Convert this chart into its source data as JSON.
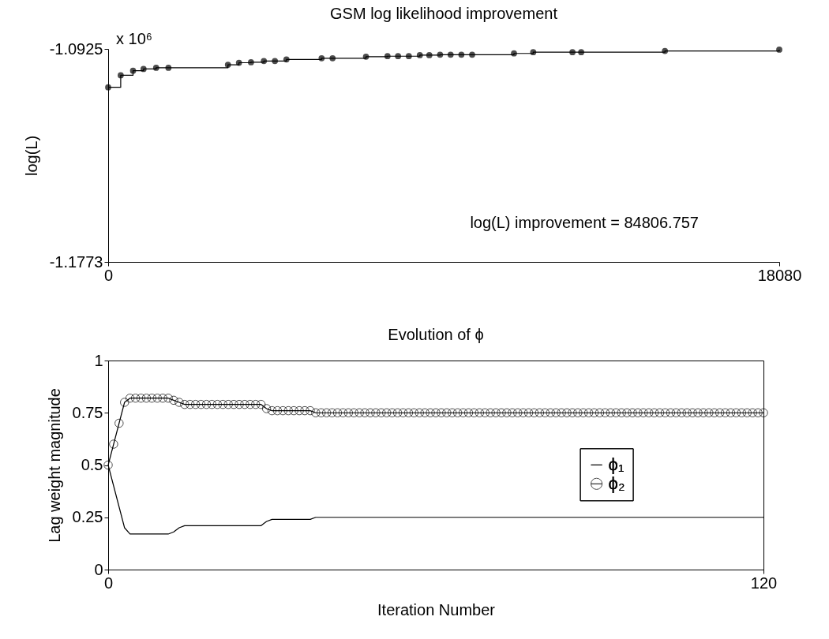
{
  "chart_data": [
    {
      "type": "step",
      "title": "GSM log likelihood improvement",
      "ylabel": "log(L)",
      "xlim": [
        0,
        18080
      ],
      "xticks": [
        0,
        18080
      ],
      "ylim": [
        -1.1773,
        -1.0925
      ],
      "yticks": [
        -1.1773,
        -1.0925
      ],
      "marker": "circle",
      "legend": false,
      "annotations": [
        "x 10⁶",
        "log(L) improvement = 84806.757"
      ],
      "series": [
        {
          "color": "#000000",
          "x": [
            0,
            338,
            670,
            953,
            1292,
            1624,
            3227,
            3524,
            3848,
            4195,
            4492,
            4803,
            5750,
            6046,
            6946,
            7526,
            7810,
            8100,
            8397,
            8652,
            8942,
            9226,
            9516,
            9806,
            10933,
            11451,
            12509,
            12744,
            15000,
            18080
          ],
          "values": [
            -1.1078,
            -1.103,
            -1.1012,
            -1.1005,
            -1.1,
            -1.1,
            -1.0988,
            -1.098,
            -1.0978,
            -1.0973,
            -1.0973,
            -1.0967,
            -1.0962,
            -1.0962,
            -1.0956,
            -1.0954,
            -1.0954,
            -1.0954,
            -1.095,
            -1.095,
            -1.0948,
            -1.0948,
            -1.0948,
            -1.0948,
            -1.0943,
            -1.0938,
            -1.0938,
            -1.0938,
            -1.0933,
            -1.0928
          ]
        }
      ]
    },
    {
      "type": "line",
      "title": "Evolution of ϕ",
      "xlabel": "Iteration Number",
      "ylabel": "Lag weight magnitude",
      "xlim": [
        0,
        120
      ],
      "xticks": [
        0,
        120
      ],
      "ylim": [
        0,
        1
      ],
      "yticks": [
        0,
        0.25,
        0.5,
        0.75,
        1
      ],
      "legend": "right",
      "x": [
        0,
        1,
        2,
        3,
        4,
        5,
        6,
        7,
        8,
        9,
        10,
        11,
        12,
        13,
        14,
        15,
        16,
        17,
        18,
        19,
        20,
        21,
        22,
        23,
        24,
        25,
        26,
        27,
        28,
        29,
        30,
        31,
        32,
        33,
        34,
        35,
        36,
        37,
        38,
        39,
        40,
        41,
        42,
        43,
        44,
        45,
        46,
        47,
        48,
        49,
        50,
        51,
        52,
        53,
        54,
        55,
        56,
        57,
        58,
        59,
        60,
        61,
        62,
        63,
        64,
        65,
        66,
        67,
        68,
        69,
        70,
        71,
        72,
        73,
        74,
        75,
        76,
        77,
        78,
        79,
        80,
        81,
        82,
        83,
        84,
        85,
        86,
        87,
        88,
        89,
        90,
        91,
        92,
        93,
        94,
        95,
        96,
        97,
        98,
        99,
        100,
        101,
        102,
        103,
        104,
        105,
        106,
        107,
        108,
        109,
        110,
        111,
        112,
        113,
        114,
        115,
        116,
        117,
        118,
        119,
        120
      ],
      "series": [
        {
          "name": "ϕ₁",
          "color": "#000000",
          "marker": "none",
          "values": [
            0.5,
            0.4,
            0.3,
            0.2,
            0.17,
            0.17,
            0.17,
            0.17,
            0.17,
            0.17,
            0.17,
            0.17,
            0.18,
            0.2,
            0.21,
            0.21,
            0.21,
            0.21,
            0.21,
            0.21,
            0.21,
            0.21,
            0.21,
            0.21,
            0.21,
            0.21,
            0.21,
            0.21,
            0.21,
            0.23,
            0.24,
            0.24,
            0.24,
            0.24,
            0.24,
            0.24,
            0.24,
            0.24,
            0.25,
            0.25,
            0.25,
            0.25,
            0.25,
            0.25,
            0.25,
            0.25,
            0.25,
            0.25,
            0.25,
            0.25,
            0.25,
            0.25,
            0.25,
            0.25,
            0.25,
            0.25,
            0.25,
            0.25,
            0.25,
            0.25,
            0.25,
            0.25,
            0.25,
            0.25,
            0.25,
            0.25,
            0.25,
            0.25,
            0.25,
            0.25,
            0.25,
            0.25,
            0.25,
            0.25,
            0.25,
            0.25,
            0.25,
            0.25,
            0.25,
            0.25,
            0.25,
            0.25,
            0.25,
            0.25,
            0.25,
            0.25,
            0.25,
            0.25,
            0.25,
            0.25,
            0.25,
            0.25,
            0.25,
            0.25,
            0.25,
            0.25,
            0.25,
            0.25,
            0.25,
            0.25,
            0.25,
            0.25,
            0.25,
            0.25,
            0.25,
            0.25,
            0.25,
            0.25,
            0.25,
            0.25,
            0.25,
            0.25,
            0.25,
            0.25,
            0.25,
            0.25,
            0.25,
            0.25,
            0.25,
            0.25,
            0.25
          ]
        },
        {
          "name": "ϕ₂",
          "color": "#000000",
          "marker": "circle",
          "values": [
            0.5,
            0.6,
            0.7,
            0.8,
            0.82,
            0.82,
            0.82,
            0.82,
            0.82,
            0.82,
            0.82,
            0.82,
            0.81,
            0.8,
            0.79,
            0.79,
            0.79,
            0.79,
            0.79,
            0.79,
            0.79,
            0.79,
            0.79,
            0.79,
            0.79,
            0.79,
            0.79,
            0.79,
            0.79,
            0.77,
            0.76,
            0.76,
            0.76,
            0.76,
            0.76,
            0.76,
            0.76,
            0.76,
            0.75,
            0.75,
            0.75,
            0.75,
            0.75,
            0.75,
            0.75,
            0.75,
            0.75,
            0.75,
            0.75,
            0.75,
            0.75,
            0.75,
            0.75,
            0.75,
            0.75,
            0.75,
            0.75,
            0.75,
            0.75,
            0.75,
            0.75,
            0.75,
            0.75,
            0.75,
            0.75,
            0.75,
            0.75,
            0.75,
            0.75,
            0.75,
            0.75,
            0.75,
            0.75,
            0.75,
            0.75,
            0.75,
            0.75,
            0.75,
            0.75,
            0.75,
            0.75,
            0.75,
            0.75,
            0.75,
            0.75,
            0.75,
            0.75,
            0.75,
            0.75,
            0.75,
            0.75,
            0.75,
            0.75,
            0.75,
            0.75,
            0.75,
            0.75,
            0.75,
            0.75,
            0.75,
            0.75,
            0.75,
            0.75,
            0.75,
            0.75,
            0.75,
            0.75,
            0.75,
            0.75,
            0.75,
            0.75,
            0.75,
            0.75,
            0.75,
            0.75,
            0.75,
            0.75,
            0.75,
            0.75,
            0.75,
            0.75
          ]
        }
      ]
    }
  ]
}
